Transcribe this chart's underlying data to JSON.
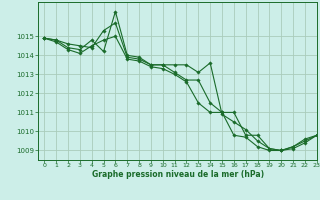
{
  "title": "Graphe pression niveau de la mer (hPa)",
  "bg_color": "#cceee8",
  "grid_color": "#aaccbb",
  "line_color": "#1a6b2a",
  "xlim": [
    -0.5,
    23
  ],
  "ylim": [
    1008.5,
    1016.8
  ],
  "yticks": [
    1009,
    1010,
    1011,
    1012,
    1013,
    1014,
    1015
  ],
  "xticks": [
    0,
    1,
    2,
    3,
    4,
    5,
    6,
    7,
    8,
    9,
    10,
    11,
    12,
    13,
    14,
    15,
    16,
    17,
    18,
    19,
    20,
    21,
    22,
    23
  ],
  "series": [
    [
      1014.9,
      1014.8,
      1014.6,
      1014.5,
      1014.4,
      1015.3,
      1015.7,
      1013.9,
      1013.8,
      1013.5,
      1013.5,
      1013.1,
      1012.7,
      1012.7,
      1011.5,
      1011.0,
      1011.0,
      1009.8,
      1009.8,
      1009.1,
      1009.0,
      1009.2,
      1009.6,
      1009.8
    ],
    [
      1014.9,
      1014.8,
      1014.4,
      1014.3,
      1014.8,
      1014.2,
      1016.3,
      1014.0,
      1013.9,
      1013.5,
      1013.5,
      1013.5,
      1013.5,
      1013.1,
      1013.6,
      1010.9,
      1010.5,
      1010.1,
      1009.5,
      1009.1,
      1009.0,
      1009.2,
      1009.5,
      1009.8
    ],
    [
      1014.9,
      1014.7,
      1014.3,
      1014.1,
      1014.5,
      1014.8,
      1015.0,
      1013.8,
      1013.7,
      1013.4,
      1013.3,
      1013.0,
      1012.6,
      1011.5,
      1011.0,
      1011.0,
      1009.8,
      1009.7,
      1009.2,
      1009.0,
      1009.0,
      1009.1,
      1009.4,
      1009.8
    ]
  ]
}
